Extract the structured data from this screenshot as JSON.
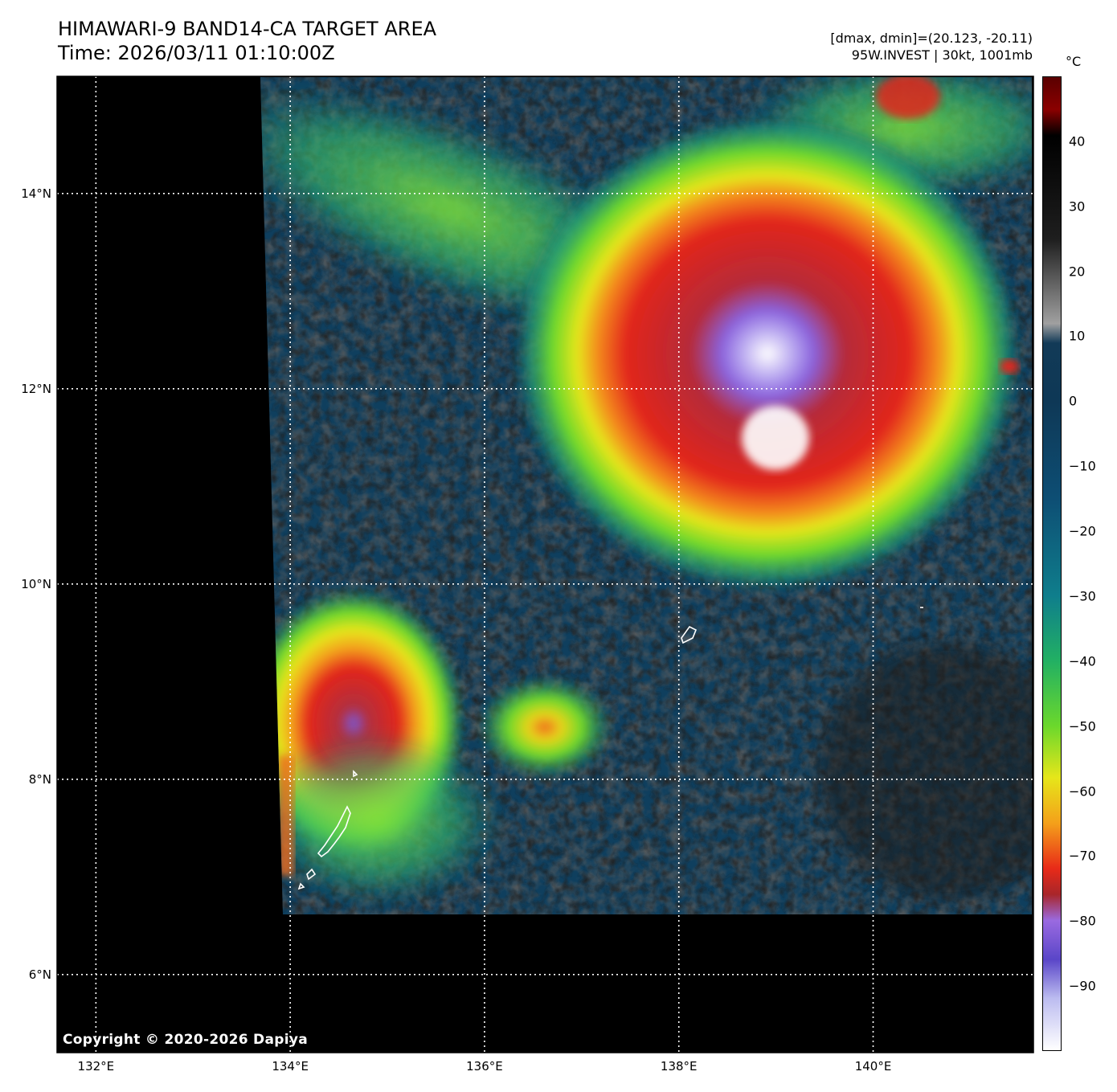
{
  "header": {
    "title_line1": "HIMAWARI-9 BAND14-CA TARGET AREA",
    "title_line2": "Time: 2026/03/11 01:10:00Z",
    "info_line1": "[dmax, dmin]=(20.123, -20.11)",
    "info_line2": "95W.INVEST | 30kt, 1001mb"
  },
  "map": {
    "lon_range": [
      131.6,
      141.65
    ],
    "lat_range": [
      5.2,
      15.2
    ],
    "lat_ticks": [
      {
        "value": 14,
        "label": "14°N"
      },
      {
        "value": 12,
        "label": "12°N"
      },
      {
        "value": 10,
        "label": "10°N"
      },
      {
        "value": 8,
        "label": "8°N"
      },
      {
        "value": 6,
        "label": "6°N"
      }
    ],
    "lon_ticks": [
      {
        "value": 132,
        "label": "132°E"
      },
      {
        "value": 134,
        "label": "134°E"
      },
      {
        "value": 136,
        "label": "136°E"
      },
      {
        "value": 138,
        "label": "138°E"
      },
      {
        "value": 140,
        "label": "140°E"
      }
    ],
    "copyright": "Copyright © 2020-2026 Dapiya",
    "background_color": "#000000",
    "grid_color": "#ffffff"
  },
  "colorbar": {
    "unit": "°C",
    "range": [
      -100,
      50
    ],
    "ticks": [
      {
        "value": 40,
        "label": "40"
      },
      {
        "value": 30,
        "label": "30"
      },
      {
        "value": 20,
        "label": "20"
      },
      {
        "value": 10,
        "label": "10"
      },
      {
        "value": 0,
        "label": "0"
      },
      {
        "value": -10,
        "label": "−10"
      },
      {
        "value": -20,
        "label": "−20"
      },
      {
        "value": -30,
        "label": "−30"
      },
      {
        "value": -40,
        "label": "−40"
      },
      {
        "value": -50,
        "label": "−50"
      },
      {
        "value": -60,
        "label": "−60"
      },
      {
        "value": -70,
        "label": "−70"
      },
      {
        "value": -80,
        "label": "−80"
      },
      {
        "value": -90,
        "label": "−90"
      }
    ],
    "stops": [
      {
        "value": 50,
        "color": "#5a0000"
      },
      {
        "value": 45,
        "color": "#8b0000"
      },
      {
        "value": 41,
        "color": "#000000"
      },
      {
        "value": 25,
        "color": "#1e1e1e"
      },
      {
        "value": 12,
        "color": "#a0a0a0"
      },
      {
        "value": 9,
        "color": "#123a57"
      },
      {
        "value": 0,
        "color": "#0e3856"
      },
      {
        "value": -15,
        "color": "#0d4e74"
      },
      {
        "value": -30,
        "color": "#0f7e8c"
      },
      {
        "value": -40,
        "color": "#22b063"
      },
      {
        "value": -50,
        "color": "#6bd82c"
      },
      {
        "value": -58,
        "color": "#e6e61a"
      },
      {
        "value": -65,
        "color": "#f4a01a"
      },
      {
        "value": -72,
        "color": "#e82a18"
      },
      {
        "value": -76,
        "color": "#a8262a"
      },
      {
        "value": -80,
        "color": "#9a6ae0"
      },
      {
        "value": -86,
        "color": "#5a46c8"
      },
      {
        "value": -92,
        "color": "#bcbcf0"
      },
      {
        "value": -100,
        "color": "#ffffff"
      }
    ]
  },
  "systems": [
    {
      "name": "95W.INVEST",
      "lon": 139.0,
      "lat": 11.6,
      "min_temp": -92
    }
  ]
}
